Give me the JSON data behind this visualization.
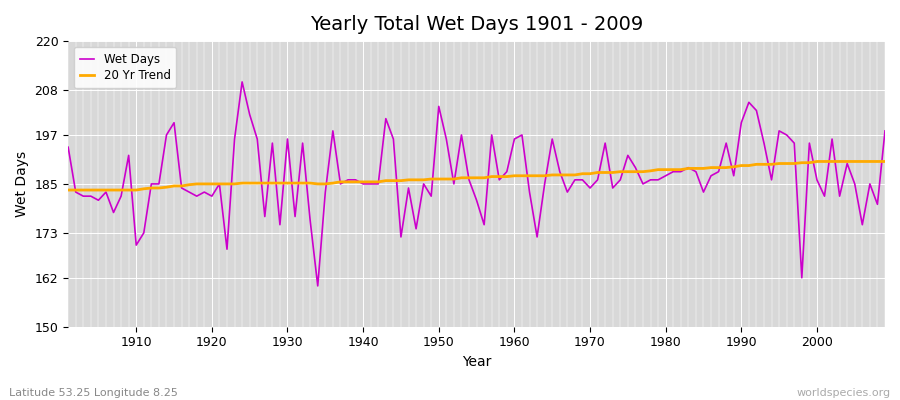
{
  "title": "Yearly Total Wet Days 1901 - 2009",
  "xlabel": "Year",
  "ylabel": "Wet Days",
  "subtitle_left": "Latitude 53.25 Longitude 8.25",
  "subtitle_right": "worldspecies.org",
  "legend_labels": [
    "Wet Days",
    "20 Yr Trend"
  ],
  "wet_days_color": "#cc00cc",
  "trend_color": "#ffaa00",
  "background_color": "#d8d8d8",
  "ylim": [
    150,
    220
  ],
  "yticks": [
    150,
    162,
    173,
    185,
    197,
    208,
    220
  ],
  "xlim": [
    1901,
    2009
  ],
  "xticks": [
    1910,
    1920,
    1930,
    1940,
    1950,
    1960,
    1970,
    1980,
    1990,
    2000
  ],
  "years": [
    1901,
    1902,
    1903,
    1904,
    1905,
    1906,
    1907,
    1908,
    1909,
    1910,
    1911,
    1912,
    1913,
    1914,
    1915,
    1916,
    1917,
    1918,
    1919,
    1920,
    1921,
    1922,
    1923,
    1924,
    1925,
    1926,
    1927,
    1928,
    1929,
    1930,
    1931,
    1932,
    1933,
    1934,
    1935,
    1936,
    1937,
    1938,
    1939,
    1940,
    1941,
    1942,
    1943,
    1944,
    1945,
    1946,
    1947,
    1948,
    1949,
    1950,
    1951,
    1952,
    1953,
    1954,
    1955,
    1956,
    1957,
    1958,
    1959,
    1960,
    1961,
    1962,
    1963,
    1964,
    1965,
    1966,
    1967,
    1968,
    1969,
    1970,
    1971,
    1972,
    1973,
    1974,
    1975,
    1976,
    1977,
    1978,
    1979,
    1980,
    1981,
    1982,
    1983,
    1984,
    1985,
    1986,
    1987,
    1988,
    1989,
    1990,
    1991,
    1992,
    1993,
    1994,
    1995,
    1996,
    1997,
    1998,
    1999,
    2000,
    2001,
    2002,
    2003,
    2004,
    2005,
    2006,
    2007,
    2008,
    2009
  ],
  "wet_days": [
    194,
    183,
    182,
    182,
    181,
    183,
    178,
    182,
    192,
    170,
    173,
    185,
    185,
    197,
    200,
    184,
    183,
    182,
    183,
    182,
    185,
    169,
    196,
    210,
    202,
    196,
    177,
    195,
    175,
    196,
    177,
    195,
    176,
    160,
    183,
    198,
    185,
    186,
    186,
    185,
    185,
    185,
    201,
    196,
    172,
    184,
    174,
    185,
    182,
    204,
    196,
    185,
    197,
    186,
    181,
    175,
    197,
    186,
    188,
    196,
    197,
    183,
    172,
    185,
    196,
    188,
    183,
    186,
    186,
    184,
    186,
    195,
    184,
    186,
    192,
    189,
    185,
    186,
    186,
    187,
    188,
    188,
    189,
    188,
    183,
    187,
    188,
    195,
    187,
    200,
    205,
    203,
    195,
    186,
    198,
    197,
    195,
    162,
    195,
    186,
    182,
    196,
    182,
    190,
    185,
    175,
    185,
    180,
    198
  ],
  "trend": [
    183.5,
    183.5,
    183.5,
    183.5,
    183.5,
    183.5,
    183.5,
    183.5,
    183.5,
    183.5,
    183.8,
    184.0,
    184.0,
    184.2,
    184.5,
    184.5,
    184.8,
    185.0,
    185.0,
    185.0,
    185.0,
    185.0,
    185.0,
    185.2,
    185.2,
    185.2,
    185.2,
    185.2,
    185.2,
    185.2,
    185.2,
    185.2,
    185.2,
    185.0,
    185.0,
    185.2,
    185.5,
    185.5,
    185.5,
    185.5,
    185.5,
    185.5,
    185.8,
    185.8,
    185.8,
    186.0,
    186.0,
    186.0,
    186.2,
    186.2,
    186.2,
    186.2,
    186.5,
    186.5,
    186.5,
    186.5,
    186.8,
    186.8,
    186.8,
    187.0,
    187.0,
    187.0,
    187.0,
    187.0,
    187.2,
    187.2,
    187.2,
    187.2,
    187.5,
    187.5,
    187.8,
    187.8,
    187.8,
    188.0,
    188.0,
    188.0,
    188.0,
    188.2,
    188.5,
    188.5,
    188.5,
    188.5,
    188.8,
    188.8,
    188.8,
    189.0,
    189.0,
    189.0,
    189.2,
    189.5,
    189.5,
    189.8,
    189.8,
    189.8,
    190.0,
    190.0,
    190.0,
    190.2,
    190.2,
    190.5,
    190.5,
    190.5,
    190.5,
    190.5,
    190.5,
    190.5,
    190.5,
    190.5,
    190.5
  ]
}
